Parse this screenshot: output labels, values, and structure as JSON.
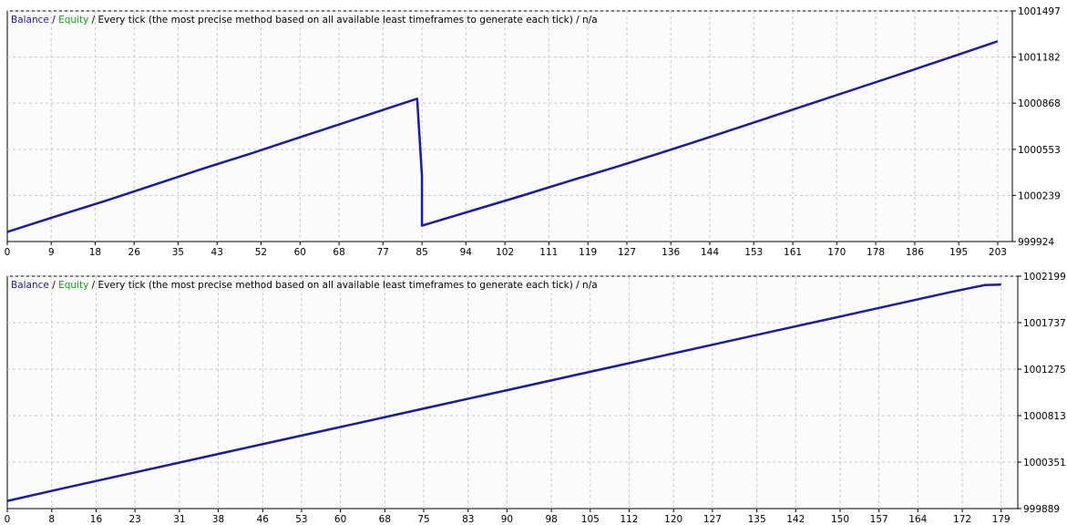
{
  "colors": {
    "balance": "#1a1aa8",
    "equity": "#16a316",
    "text": "#000000",
    "grid": "#c8c8c8",
    "plot_bg": "#fbfbfb"
  },
  "chart_data": [
    {
      "type": "line",
      "header": {
        "balance_label": "Balance",
        "sep1": " / ",
        "equity_label": "Equity",
        "rest": " / Every tick (the most precise method based on all available least timeframes to generate each tick) / n/a"
      },
      "x_ticks": [
        0,
        9,
        18,
        26,
        35,
        43,
        52,
        60,
        68,
        77,
        85,
        94,
        102,
        111,
        119,
        127,
        136,
        144,
        153,
        161,
        170,
        178,
        186,
        195,
        203
      ],
      "y_ticks": [
        999924,
        1000239,
        1000553,
        1000868,
        1001182,
        1001497
      ],
      "xlim": [
        0,
        206
      ],
      "ylim": [
        999924,
        1001497
      ],
      "grid": true,
      "series": [
        {
          "name": "Balance",
          "x": [
            0,
            10,
            20,
            30,
            40,
            50,
            60,
            70,
            80,
            84,
            84,
            85,
            85,
            95,
            105,
            115,
            125,
            135,
            145,
            155,
            165,
            175,
            185,
            195,
            203
          ],
          "y": [
            999990,
            1000096,
            1000200,
            1000310,
            1000420,
            1000525,
            1000635,
            1000745,
            1000855,
            1000898,
            1000898,
            1000370,
            1000032,
            1000132,
            1000232,
            1000335,
            1000435,
            1000540,
            1000648,
            1000758,
            1000868,
            1000978,
            1001088,
            1001200,
            1001290
          ]
        }
      ]
    },
    {
      "type": "line",
      "header": {
        "balance_label": "Balance",
        "sep1": " / ",
        "equity_label": "Equity",
        "rest": " / Every tick (the most precise method based on all available least timeframes to generate each tick) / n/a"
      },
      "x_ticks": [
        0,
        8,
        16,
        23,
        31,
        38,
        46,
        53,
        60,
        68,
        75,
        83,
        90,
        98,
        105,
        112,
        120,
        127,
        135,
        142,
        150,
        157,
        164,
        172,
        179
      ],
      "y_ticks": [
        999889,
        1000351,
        1000813,
        1001275,
        1001737,
        1002199
      ],
      "xlim": [
        0,
        182
      ],
      "ylim": [
        999889,
        1002199
      ],
      "grid": true,
      "series": [
        {
          "name": "Balance",
          "x": [
            0,
            10,
            20,
            30,
            40,
            50,
            60,
            70,
            80,
            90,
            100,
            110,
            120,
            130,
            140,
            150,
            160,
            170,
            176,
            179
          ],
          "y": [
            999965,
            1000090,
            1000212,
            1000334,
            1000456,
            1000578,
            1000700,
            1000822,
            1000944,
            1001066,
            1001188,
            1001310,
            1001432,
            1001554,
            1001676,
            1001798,
            1001920,
            1002042,
            1002110,
            1002115
          ]
        }
      ]
    }
  ]
}
